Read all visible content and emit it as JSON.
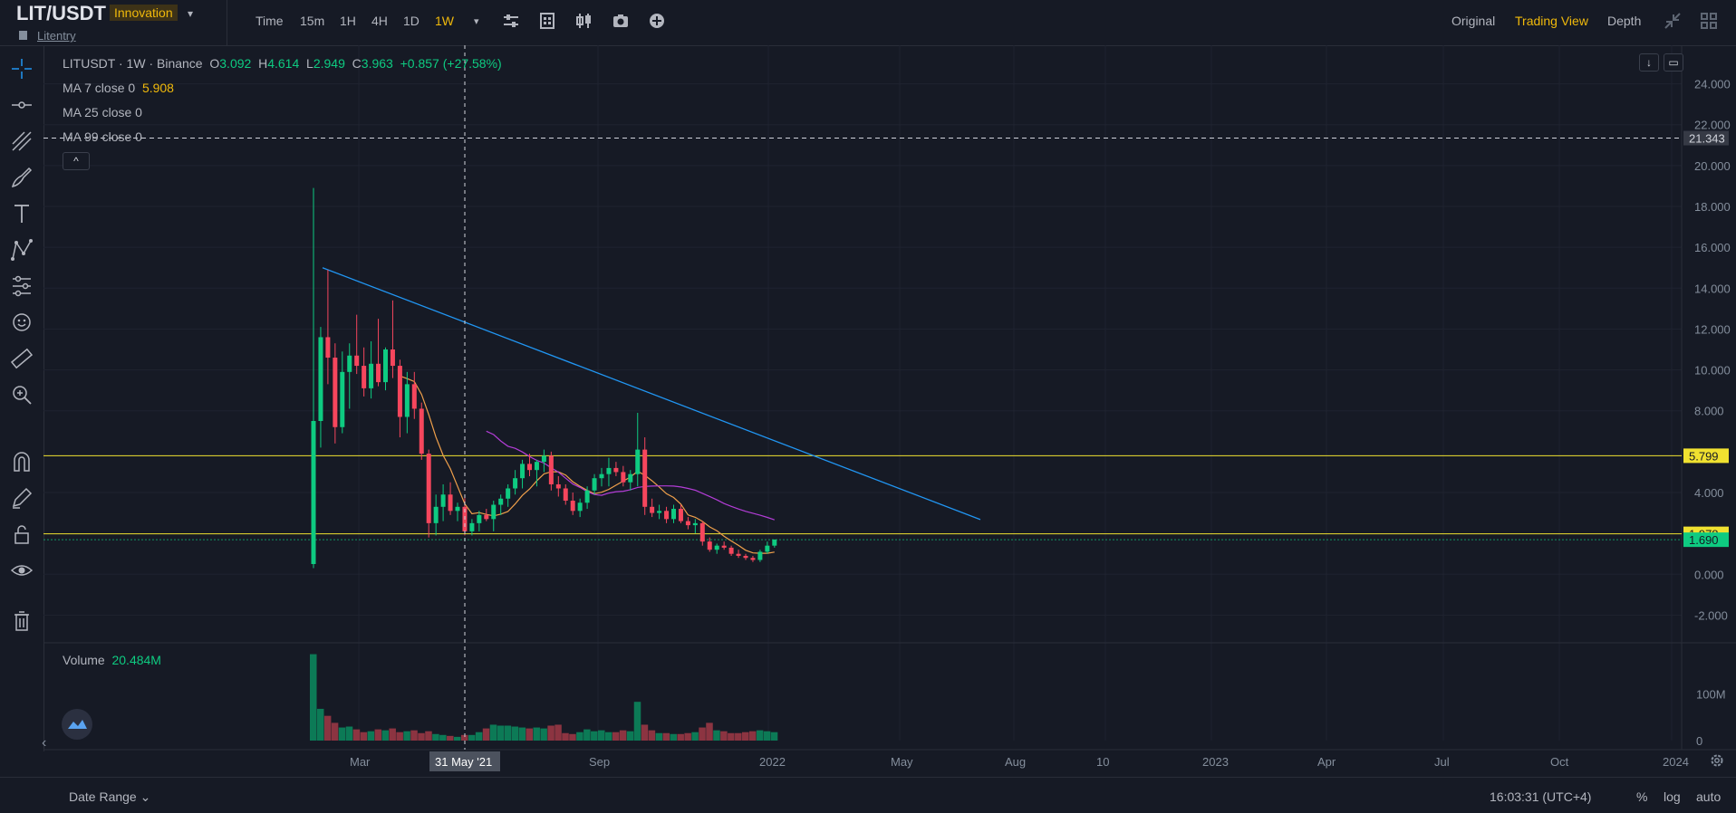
{
  "header": {
    "pair": "LIT/USDT",
    "badge": "Innovation",
    "caret": "▾",
    "subtitle": "Litentry",
    "timeframes": [
      "Time",
      "15m",
      "1H",
      "4H",
      "1D",
      "1W"
    ],
    "active_timeframe": "1W",
    "timeframe_caret": "▾",
    "views": [
      "Original",
      "Trading View",
      "Depth"
    ],
    "active_view": "Trading View",
    "toolbar_icons": [
      "indicator-settings-icon",
      "chart-template-icon",
      "candle-type-icon",
      "camera-icon",
      "add-icon"
    ]
  },
  "legend": {
    "symbol": "LITUSDT",
    "dot1": "·",
    "interval": "1W",
    "dot2": "·",
    "exchange": "Binance",
    "o_label": "O",
    "o": "3.092",
    "h_label": "H",
    "h": "4.614",
    "l_label": "L",
    "l": "2.949",
    "c_label": "C",
    "c": "3.963",
    "change": "+0.857 (+27.58%)",
    "ma7_label": "MA 7 close 0",
    "ma7": "5.908",
    "ma25_label": "MA 25 close 0",
    "ma99_label": "MA 99 close 0",
    "collapse": "^"
  },
  "volume": {
    "label": "Volume",
    "value": "20.484M"
  },
  "price_axis": [
    "24.000",
    "22.000",
    "20.000",
    "18.000",
    "16.000",
    "14.000",
    "12.000",
    "10.000",
    "8.000",
    "4.000",
    "0.000",
    "-2.000"
  ],
  "price_markers": [
    {
      "label": "21.343",
      "bg": "#363a45",
      "fg": "#d1d4dc"
    },
    {
      "label": "5.799",
      "bg": "#f0e130",
      "fg": "#161a25"
    },
    {
      "label": "1.978",
      "bg": "#f0e130",
      "fg": "#161a25"
    },
    {
      "label": "1.690",
      "bg": "#0ecb81",
      "fg": "#161a25"
    }
  ],
  "volume_axis": [
    "100M",
    "0"
  ],
  "time_axis": [
    "Mar",
    "Sep",
    "2022",
    "May",
    "Aug",
    "10",
    "2023",
    "Apr",
    "Jul",
    "Oct",
    "2024"
  ],
  "crosshair_date": "31 May '21",
  "bottom": {
    "date_range": "Date Range",
    "caret": "⌄",
    "clock": "16:03:31 (UTC+4)",
    "percent": "%",
    "log": "log",
    "auto": "auto",
    "scroll_left": "‹"
  },
  "colors": {
    "up": "#0ecb81",
    "down": "#f6465d",
    "trendline": "#2196f3",
    "level": "#f0e130",
    "ma7": "#f0a04b",
    "ma25": "#b33dd6",
    "accent": "#f0b90b"
  },
  "chart_data": {
    "type": "candlestick",
    "interval": "1W",
    "pair": "LIT/USDT",
    "candles": [
      {
        "o": 0.5,
        "h": 18.9,
        "l": 0.3,
        "c": 7.5
      },
      {
        "o": 7.5,
        "h": 12.1,
        "l": 6.2,
        "c": 11.6
      },
      {
        "o": 11.6,
        "h": 14.9,
        "l": 9.3,
        "c": 10.6
      },
      {
        "o": 10.6,
        "h": 11.3,
        "l": 6.4,
        "c": 7.2
      },
      {
        "o": 7.2,
        "h": 10.9,
        "l": 6.9,
        "c": 9.9
      },
      {
        "o": 9.9,
        "h": 11.3,
        "l": 8.1,
        "c": 10.7
      },
      {
        "o": 10.7,
        "h": 12.7,
        "l": 9.8,
        "c": 10.2
      },
      {
        "o": 10.2,
        "h": 11.1,
        "l": 8.7,
        "c": 9.1
      },
      {
        "o": 9.1,
        "h": 11.4,
        "l": 8.6,
        "c": 10.3
      },
      {
        "o": 10.3,
        "h": 12.5,
        "l": 9.2,
        "c": 9.4
      },
      {
        "o": 9.4,
        "h": 11.1,
        "l": 9.0,
        "c": 11.0
      },
      {
        "o": 11.0,
        "h": 13.4,
        "l": 9.6,
        "c": 10.2
      },
      {
        "o": 10.2,
        "h": 10.5,
        "l": 6.7,
        "c": 7.7
      },
      {
        "o": 7.7,
        "h": 9.9,
        "l": 6.9,
        "c": 9.3
      },
      {
        "o": 9.3,
        "h": 9.9,
        "l": 7.6,
        "c": 8.1
      },
      {
        "o": 8.1,
        "h": 8.4,
        "l": 5.6,
        "c": 5.9
      },
      {
        "o": 5.9,
        "h": 6.1,
        "l": 1.8,
        "c": 2.5
      },
      {
        "o": 2.5,
        "h": 3.9,
        "l": 1.9,
        "c": 3.3
      },
      {
        "o": 3.3,
        "h": 4.4,
        "l": 2.6,
        "c": 3.9
      },
      {
        "o": 3.9,
        "h": 4.5,
        "l": 2.9,
        "c": 3.1
      },
      {
        "o": 3.1,
        "h": 3.5,
        "l": 2.6,
        "c": 3.3
      },
      {
        "o": 3.3,
        "h": 3.9,
        "l": 1.9,
        "c": 2.1
      },
      {
        "o": 2.1,
        "h": 2.7,
        "l": 1.9,
        "c": 2.5
      },
      {
        "o": 2.5,
        "h": 3.1,
        "l": 2.1,
        "c": 2.9
      },
      {
        "o": 2.9,
        "h": 3.2,
        "l": 2.6,
        "c": 2.7
      },
      {
        "o": 2.7,
        "h": 3.6,
        "l": 2.1,
        "c": 3.4
      },
      {
        "o": 3.4,
        "h": 3.9,
        "l": 2.9,
        "c": 3.7
      },
      {
        "o": 3.7,
        "h": 4.4,
        "l": 3.3,
        "c": 4.2
      },
      {
        "o": 4.2,
        "h": 5.1,
        "l": 3.9,
        "c": 4.7
      },
      {
        "o": 4.7,
        "h": 5.6,
        "l": 4.2,
        "c": 5.4
      },
      {
        "o": 5.4,
        "h": 5.9,
        "l": 4.8,
        "c": 5.1
      },
      {
        "o": 5.1,
        "h": 5.6,
        "l": 4.3,
        "c": 5.5
      },
      {
        "o": 5.5,
        "h": 6.1,
        "l": 5.0,
        "c": 5.8
      },
      {
        "o": 5.8,
        "h": 6.0,
        "l": 4.1,
        "c": 4.4
      },
      {
        "o": 4.4,
        "h": 4.8,
        "l": 3.8,
        "c": 4.2
      },
      {
        "o": 4.2,
        "h": 4.4,
        "l": 3.4,
        "c": 3.6
      },
      {
        "o": 3.6,
        "h": 4.0,
        "l": 2.9,
        "c": 3.1
      },
      {
        "o": 3.1,
        "h": 3.7,
        "l": 2.8,
        "c": 3.5
      },
      {
        "o": 3.5,
        "h": 4.3,
        "l": 3.2,
        "c": 4.1
      },
      {
        "o": 4.1,
        "h": 4.9,
        "l": 3.9,
        "c": 4.7
      },
      {
        "o": 4.7,
        "h": 5.2,
        "l": 4.3,
        "c": 4.9
      },
      {
        "o": 4.9,
        "h": 5.7,
        "l": 4.3,
        "c": 5.2
      },
      {
        "o": 5.2,
        "h": 5.5,
        "l": 4.8,
        "c": 5.0
      },
      {
        "o": 5.0,
        "h": 5.3,
        "l": 4.3,
        "c": 4.5
      },
      {
        "o": 4.5,
        "h": 5.1,
        "l": 4.1,
        "c": 4.9
      },
      {
        "o": 4.9,
        "h": 7.9,
        "l": 4.3,
        "c": 6.1
      },
      {
        "o": 6.1,
        "h": 6.7,
        "l": 2.9,
        "c": 3.3
      },
      {
        "o": 3.3,
        "h": 3.7,
        "l": 2.8,
        "c": 3.0
      },
      {
        "o": 3.0,
        "h": 3.4,
        "l": 2.7,
        "c": 3.1
      },
      {
        "o": 3.1,
        "h": 3.3,
        "l": 2.5,
        "c": 2.7
      },
      {
        "o": 2.7,
        "h": 3.4,
        "l": 2.5,
        "c": 3.2
      },
      {
        "o": 3.2,
        "h": 3.4,
        "l": 2.5,
        "c": 2.6
      },
      {
        "o": 2.6,
        "h": 2.8,
        "l": 2.2,
        "c": 2.4
      },
      {
        "o": 2.4,
        "h": 2.7,
        "l": 2.0,
        "c": 2.5
      },
      {
        "o": 2.5,
        "h": 2.6,
        "l": 1.4,
        "c": 1.6
      },
      {
        "o": 1.6,
        "h": 1.8,
        "l": 1.1,
        "c": 1.2
      },
      {
        "o": 1.2,
        "h": 1.5,
        "l": 1.0,
        "c": 1.4
      },
      {
        "o": 1.4,
        "h": 1.6,
        "l": 1.2,
        "c": 1.3
      },
      {
        "o": 1.3,
        "h": 1.4,
        "l": 0.9,
        "c": 1.0
      },
      {
        "o": 1.0,
        "h": 1.2,
        "l": 0.8,
        "c": 0.9
      },
      {
        "o": 0.9,
        "h": 1.0,
        "l": 0.7,
        "c": 0.8
      },
      {
        "o": 0.8,
        "h": 0.9,
        "l": 0.6,
        "c": 0.7
      },
      {
        "o": 0.7,
        "h": 1.2,
        "l": 0.6,
        "c": 1.1
      },
      {
        "o": 1.1,
        "h": 1.6,
        "l": 1.0,
        "c": 1.4
      },
      {
        "o": 1.4,
        "h": 1.7,
        "l": 1.3,
        "c": 1.7
      }
    ],
    "volume": [
      185,
      68,
      53,
      38,
      28,
      30,
      24,
      18,
      20,
      24,
      22,
      26,
      18,
      20,
      22,
      16,
      20,
      14,
      12,
      10,
      8,
      12,
      12,
      18,
      26,
      34,
      32,
      32,
      30,
      28,
      26,
      28,
      26,
      32,
      34,
      16,
      14,
      18,
      24,
      20,
      22,
      18,
      18,
      22,
      20,
      83,
      34,
      22,
      16,
      16,
      14,
      14,
      16,
      18,
      28,
      38,
      22,
      20,
      16,
      16,
      18,
      20,
      22,
      20,
      18
    ],
    "horizontal_levels": [
      21.343,
      5.799,
      1.978,
      1.69
    ],
    "trendline": [
      {
        "candle": 0,
        "price": 15.0
      },
      {
        "candle": 58,
        "price": 2.1
      }
    ],
    "ylim": [
      -3,
      25
    ],
    "volume_ylim": [
      0,
      190
    ]
  }
}
